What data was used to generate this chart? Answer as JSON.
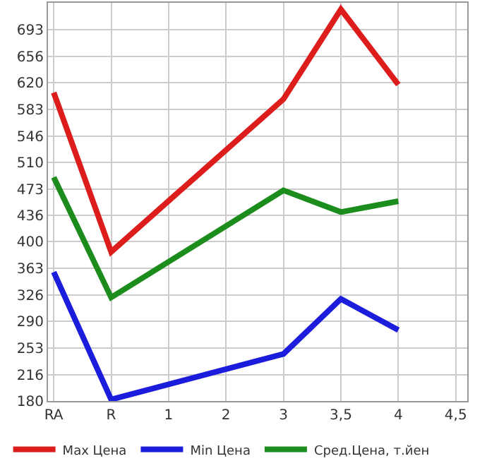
{
  "chart_data": {
    "type": "line",
    "categories": [
      "RA",
      "R",
      "1",
      "2",
      "3",
      "3,5",
      "4",
      "4,5"
    ],
    "series": [
      {
        "name": "Max Цена",
        "color": "#dd1c1c",
        "values": [
          606,
          386,
          null,
          null,
          597,
          721,
          617,
          null
        ]
      },
      {
        "name": "Min Цена",
        "color": "#1c1cdd",
        "values": [
          358,
          182,
          null,
          null,
          245,
          321,
          278,
          null
        ]
      },
      {
        "name": "Сред.Цена, т.йен",
        "color": "#1c8c1c",
        "values": [
          489,
          323,
          null,
          null,
          471,
          441,
          456,
          null
        ]
      }
    ],
    "ylim": [
      180,
      730
    ],
    "yticks": [
      180,
      216,
      253,
      290,
      326,
      363,
      400,
      436,
      473,
      510,
      546,
      583,
      620,
      656,
      693
    ],
    "grid": true,
    "legend": "bottom",
    "marker": "none",
    "line_style": "solid"
  }
}
